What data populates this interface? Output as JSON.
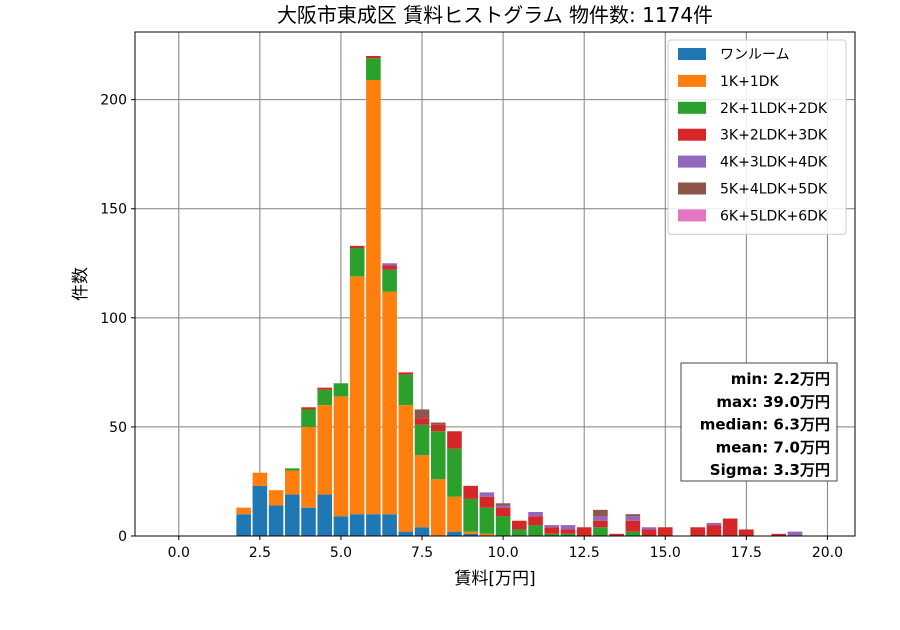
{
  "chart_data": {
    "type": "bar",
    "title": "大阪市東成区 賃料ヒストグラム 物件数: 1174件",
    "xlabel": "賃料[万円]",
    "ylabel": "件数",
    "xlim": [
      -1.35,
      20.85
    ],
    "ylim": [
      0,
      231
    ],
    "xticks": [
      "0.0",
      "2.5",
      "5.0",
      "7.5",
      "10.0",
      "12.5",
      "15.0",
      "17.5",
      "20.0"
    ],
    "yticks": [
      "0",
      "50",
      "100",
      "150",
      "200"
    ],
    "grid": true,
    "legend_position": "top-right",
    "bin_width": 0.5,
    "x": [
      2,
      2.5,
      3,
      3.5,
      4,
      4.5,
      5,
      5.5,
      6,
      6.5,
      7,
      7.5,
      8,
      8.5,
      9,
      9.5,
      10,
      10.5,
      11,
      11.5,
      12,
      12.5,
      13,
      13.5,
      14,
      14.5,
      15,
      15.5,
      16,
      16.5,
      17,
      17.5,
      18,
      18.5,
      19
    ],
    "series": [
      {
        "name": "ワンルーム",
        "color": "#1f77b4",
        "values": [
          10,
          23,
          14,
          19,
          13,
          19,
          9,
          10,
          10,
          10,
          2,
          4,
          0,
          2,
          1,
          0,
          0,
          0,
          0,
          0,
          0,
          0,
          0,
          0,
          0,
          0,
          0,
          0,
          0,
          0,
          0,
          0,
          0,
          0,
          0
        ]
      },
      {
        "name": "1K+1DK",
        "color": "#ff7f0e",
        "values": [
          3,
          6,
          7,
          11,
          37,
          41,
          55,
          109,
          199,
          102,
          58,
          33,
          26,
          16,
          1,
          1,
          0,
          0,
          0,
          0,
          0,
          0,
          0,
          0,
          0,
          0,
          0,
          0,
          0,
          0,
          0,
          0,
          0,
          0,
          0
        ]
      },
      {
        "name": "2K+1LDK+2DK",
        "color": "#2ca02c",
        "values": [
          0,
          0,
          0,
          1,
          8,
          7,
          6,
          13,
          10,
          10,
          14,
          14,
          22,
          22,
          15,
          12,
          9,
          3,
          5,
          1,
          1,
          0,
          4,
          0,
          2,
          0,
          0,
          0,
          0,
          0,
          0,
          0,
          0,
          0,
          0
        ]
      },
      {
        "name": "3K+2LDK+3DK",
        "color": "#d62728",
        "values": [
          0,
          0,
          0,
          0,
          1,
          1,
          0,
          1,
          1,
          2,
          1,
          3,
          3,
          8,
          6,
          5,
          4,
          4,
          4,
          3,
          2,
          4,
          3,
          1,
          5,
          3,
          4,
          0,
          4,
          5,
          8,
          3,
          0,
          1,
          0
        ]
      },
      {
        "name": "4K+3LDK+4DK",
        "color": "#9467bd",
        "values": [
          0,
          0,
          0,
          0,
          0,
          0,
          0,
          0,
          0,
          1,
          0,
          0,
          0,
          0,
          0,
          2,
          1,
          0,
          2,
          1,
          2,
          0,
          2,
          0,
          2,
          1,
          0,
          0,
          0,
          1,
          0,
          0,
          0,
          0,
          2
        ]
      },
      {
        "name": "5K+4LDK+5DK",
        "color": "#8c564b",
        "values": [
          0,
          0,
          0,
          0,
          0,
          0,
          0,
          0,
          0,
          0,
          0,
          4,
          1,
          0,
          0,
          0,
          1,
          0,
          0,
          0,
          0,
          0,
          3,
          0,
          1,
          0,
          0,
          0,
          0,
          0,
          0,
          0,
          0,
          0,
          0
        ]
      },
      {
        "name": "6K+5LDK+6DK",
        "color": "#e377c2",
        "values": [
          0,
          0,
          0,
          0,
          0,
          0,
          0,
          0,
          0,
          0,
          0,
          0,
          0,
          0,
          0,
          0,
          0,
          0,
          0,
          0,
          0,
          0,
          0,
          0,
          0,
          0,
          0,
          0,
          0,
          0,
          0,
          0,
          0,
          0,
          0
        ]
      }
    ],
    "stats": [
      "min: 2.2万円",
      "max: 39.0万円",
      "median: 6.3万円",
      "mean: 7.0万円",
      "Sigma: 3.3万円"
    ]
  }
}
